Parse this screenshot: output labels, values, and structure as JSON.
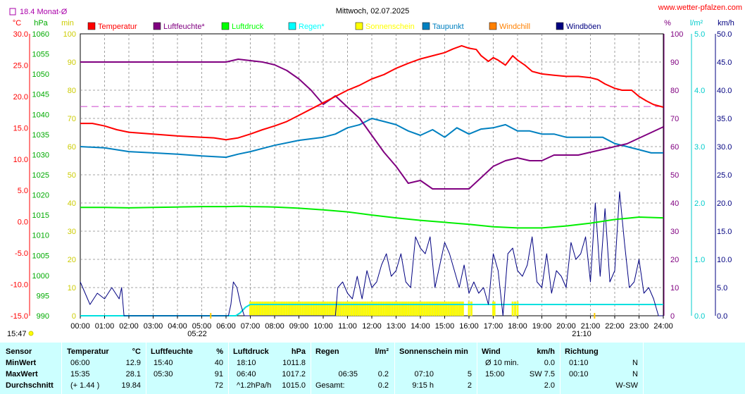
{
  "header": {
    "title": "Mittwoch, 02.07.2025",
    "source": "www.wetter-pfalzen.com",
    "monthly_avg": "18.4 Monat-Ø"
  },
  "chart_data": {
    "type": "line",
    "title": "Mittwoch, 02.07.2025",
    "x_ticks": [
      "00:00",
      "01:00",
      "02:00",
      "03:00",
      "04:00",
      "05:00",
      "06:00",
      "07:00",
      "08:00",
      "09:00",
      "10:00",
      "11:00",
      "12:00",
      "13:00",
      "14:00",
      "15:00",
      "16:00",
      "17:00",
      "18:00",
      "19:00",
      "20:00",
      "21:00",
      "22:00",
      "23:00",
      "24:00"
    ],
    "axes": {
      "temp_c": {
        "label": "°C",
        "range": [
          -15,
          30
        ],
        "ticks": [
          "30.0",
          "25.0",
          "20.0",
          "15.0",
          "10.0",
          "5.0",
          "0.0",
          "-5.0",
          "-10.0",
          "-15.0"
        ],
        "color": "#ff0000"
      },
      "pressure_hpa": {
        "label": "hPa",
        "range": [
          990,
          1060
        ],
        "ticks": [
          "1060",
          "1055",
          "1050",
          "1045",
          "1040",
          "1035",
          "1030",
          "1025",
          "1020",
          "1015",
          "1010",
          "1005",
          "1000",
          "995",
          "990"
        ],
        "color": "#00aa00"
      },
      "sun_min": {
        "label": "min",
        "range": [
          0,
          100
        ],
        "ticks": [
          "100",
          "90",
          "80",
          "70",
          "60",
          "50",
          "40",
          "30",
          "20",
          "10",
          "0"
        ],
        "color": "#cccc00"
      },
      "humidity_pct": {
        "label": "%",
        "range": [
          0,
          100
        ],
        "ticks": [
          "100",
          "90",
          "80",
          "70",
          "60",
          "50",
          "40",
          "30",
          "20",
          "10",
          "0"
        ],
        "color": "#800080"
      },
      "rain_lm2": {
        "label": "l/m²",
        "range": [
          0,
          5
        ],
        "ticks": [
          "5.0",
          "4.0",
          "3.0",
          "2.0",
          "1.0",
          "0.0"
        ],
        "color": "#00cccc"
      },
      "wind_kmh": {
        "label": "km/h",
        "range": [
          0,
          50
        ],
        "ticks": [
          "50.0",
          "45.0",
          "40.0",
          "35.0",
          "30.0",
          "25.0",
          "20.0",
          "15.0",
          "10.0",
          "5.0",
          "0.0"
        ],
        "color": "#000080"
      }
    },
    "legend": [
      {
        "name": "Temperatur",
        "color": "#ff0000"
      },
      {
        "name": "Luftfeuchte*",
        "color": "#800080"
      },
      {
        "name": "Luftdruck",
        "color": "#00ff00"
      },
      {
        "name": "Regen*",
        "color": "#00ffff"
      },
      {
        "name": "Sonnenschein",
        "color": "#ffff00"
      },
      {
        "name": "Taupunkt",
        "color": "#0080c0"
      },
      {
        "name": "Windchill",
        "color": "#ff8000"
      },
      {
        "name": "Windböen",
        "color": "#000080"
      }
    ],
    "monthly_avg_temp": 18.4,
    "series": [
      {
        "name": "Temperatur",
        "axis": "temp_c",
        "x": [
          0,
          0.5,
          1,
          1.5,
          2,
          3,
          4,
          5,
          5.5,
          6,
          6.5,
          7,
          7.5,
          8,
          8.5,
          9,
          9.5,
          10,
          10.5,
          11,
          11.5,
          12,
          12.5,
          13,
          13.5,
          14,
          14.5,
          15,
          15.35,
          15.7,
          16,
          16.3,
          16.5,
          16.8,
          17,
          17.2,
          17.5,
          17.8,
          18,
          18.3,
          18.6,
          19,
          19.5,
          20,
          20.5,
          21,
          21.3,
          21.6,
          22,
          22.3,
          22.7,
          23,
          23.3,
          23.6,
          24
        ],
        "values": [
          15.7,
          15.7,
          15.3,
          14.7,
          14.3,
          14.0,
          13.7,
          13.5,
          13.4,
          13.1,
          13.4,
          14.0,
          14.7,
          15.3,
          16.0,
          17.0,
          18.0,
          19.0,
          20.0,
          21.0,
          21.8,
          22.8,
          23.5,
          24.5,
          25.3,
          26.0,
          26.5,
          27.0,
          27.6,
          28.1,
          27.7,
          27.5,
          26.5,
          25.6,
          26.2,
          25.8,
          25.0,
          26.5,
          25.8,
          25.0,
          24.0,
          23.6,
          23.4,
          23.2,
          23.2,
          23.0,
          22.7,
          22.0,
          21.3,
          21.0,
          21.0,
          20.0,
          19.3,
          18.7,
          18.3
        ]
      },
      {
        "name": "Luftfeuchte*",
        "axis": "humidity_pct",
        "x": [
          0,
          1,
          2,
          3,
          4,
          5,
          6,
          6.5,
          7,
          7.5,
          8,
          8.5,
          9,
          9.5,
          10,
          10.5,
          11,
          11.5,
          12,
          12.5,
          13,
          13.5,
          14,
          14.5,
          15,
          15.5,
          16,
          16.5,
          17,
          17.5,
          18,
          18.5,
          19,
          19.5,
          20,
          20.5,
          21,
          21.5,
          22,
          22.5,
          23,
          23.5,
          24
        ],
        "values": [
          90,
          90,
          90,
          90,
          90,
          90,
          90,
          91,
          90.5,
          90,
          89,
          87,
          84,
          80,
          75,
          78,
          74,
          70,
          64,
          58,
          53,
          47,
          48,
          45,
          45,
          45,
          45,
          49,
          53,
          55,
          56,
          55,
          55,
          57,
          57,
          57,
          58,
          59,
          60,
          61,
          63,
          65,
          67
        ]
      },
      {
        "name": "Luftdruck",
        "axis": "pressure_hpa",
        "x": [
          0,
          1,
          2,
          3,
          4,
          5,
          6,
          6.67,
          7,
          8,
          9,
          10,
          11,
          12,
          13,
          14,
          15,
          16,
          17,
          18,
          19,
          20,
          21,
          22,
          23,
          24
        ],
        "values": [
          1016.9,
          1016.9,
          1016.8,
          1016.9,
          1017.0,
          1017.1,
          1017.1,
          1017.2,
          1017.1,
          1017.0,
          1016.7,
          1016.3,
          1015.8,
          1015.0,
          1014.3,
          1013.7,
          1013.2,
          1012.7,
          1012.1,
          1011.8,
          1011.8,
          1012.3,
          1013.0,
          1013.9,
          1014.5,
          1014.3
        ]
      },
      {
        "name": "Regen*",
        "axis": "rain_lm2",
        "x": [
          0,
          6.4,
          6.58,
          6.8,
          7.0,
          7.5,
          24
        ],
        "values": [
          0.0,
          0.0,
          0.05,
          0.15,
          0.2,
          0.2,
          0.2
        ]
      },
      {
        "name": "Taupunkt",
        "axis": "temp_c",
        "x": [
          0,
          1,
          2,
          3,
          4,
          5,
          6,
          6.5,
          7,
          8,
          9,
          10,
          10.5,
          11,
          11.5,
          12,
          12.5,
          13,
          13.5,
          14,
          14.5,
          15,
          15.5,
          16,
          16.5,
          17,
          17.5,
          18,
          18.5,
          19,
          19.5,
          20,
          20.5,
          21,
          21.5,
          22,
          22.5,
          23,
          23.5,
          24
        ],
        "values": [
          12.0,
          11.8,
          11.2,
          11.0,
          10.8,
          10.5,
          10.3,
          10.8,
          11.2,
          12.2,
          13.0,
          13.5,
          14.0,
          15.0,
          15.5,
          16.5,
          16.0,
          15.5,
          14.5,
          13.8,
          14.7,
          13.5,
          15.0,
          14.0,
          14.8,
          15.0,
          15.5,
          14.5,
          14.5,
          14.0,
          14.0,
          13.5,
          13.5,
          13.5,
          13.5,
          12.5,
          12.0,
          11.5,
          11.0,
          11.0
        ]
      },
      {
        "name": "Windböen",
        "axis": "wind_kmh",
        "x": [
          0,
          0.2,
          0.4,
          0.7,
          1.0,
          1.3,
          1.6,
          1.7,
          1.8,
          6.1,
          6.2,
          6.3,
          6.45,
          6.6,
          6.75,
          6.9,
          10.5,
          10.6,
          10.8,
          11.0,
          11.2,
          11.4,
          11.6,
          11.8,
          12.0,
          12.2,
          12.4,
          12.6,
          12.8,
          13.0,
          13.2,
          13.4,
          13.6,
          13.8,
          14.0,
          14.2,
          14.4,
          14.6,
          14.8,
          15.0,
          15.2,
          15.4,
          15.6,
          15.8,
          16.0,
          16.2,
          16.4,
          16.6,
          16.8,
          17.0,
          17.2,
          17.4,
          17.6,
          17.8,
          18.0,
          18.2,
          18.4,
          18.6,
          18.8,
          19.0,
          19.2,
          19.4,
          19.6,
          19.8,
          20.0,
          20.2,
          20.4,
          20.6,
          20.8,
          21.0,
          21.2,
          21.4,
          21.6,
          21.8,
          22.0,
          22.2,
          22.4,
          22.6,
          22.8,
          23.0,
          23.2,
          23.4,
          23.6,
          23.8,
          24.0
        ],
        "values": [
          6,
          4,
          2,
          4,
          3,
          5,
          3,
          5,
          0,
          0,
          2,
          6,
          5,
          2,
          0,
          0,
          0,
          5,
          6,
          4,
          3,
          7,
          3,
          8,
          5,
          6,
          9,
          11,
          7,
          8,
          11,
          6,
          5,
          14,
          12,
          11,
          14,
          5,
          9,
          13,
          11,
          8,
          5,
          9,
          4,
          6,
          4,
          5,
          2,
          11,
          8,
          0,
          11,
          12,
          8,
          7,
          9,
          14,
          6,
          5,
          11,
          4,
          8,
          7,
          5,
          13,
          10,
          11,
          14,
          6,
          20,
          7,
          19,
          6,
          8,
          22,
          13,
          5,
          6,
          10,
          4,
          5,
          3,
          0,
          0
        ]
      }
    ],
    "sunshine_bars": {
      "axis": "sun_min",
      "x": [
        7.0,
        15.75
      ],
      "value": 5,
      "extra_x": [
        16.0,
        16.1,
        17.0,
        17.05,
        17.8,
        17.9,
        18.0
      ]
    },
    "markers": {
      "current_time": "15:47",
      "sunrise": "05:22",
      "sunset": "21:10"
    }
  },
  "stats": {
    "headers": {
      "sensor": "Sensor",
      "temp": "Temperatur",
      "temp_unit": "°C",
      "hum": "Luftfeuchte",
      "hum_unit": "%",
      "press": "Luftdruck",
      "press_unit": "hPa",
      "rain": "Regen",
      "rain_unit": "l/m²",
      "sun": "Sonnenschein min",
      "wind": "Wind",
      "wind_unit": "km/h",
      "dir": "Richtung"
    },
    "rows": [
      {
        "label": "MinWert",
        "temp_time": "06:00",
        "temp_val": "12.9",
        "hum_time": "15:40",
        "hum_val": "40",
        "press_time": "18:10",
        "press_val": "1011.8",
        "rain_time": "",
        "rain_val": "",
        "sun_time": "",
        "sun_val": "",
        "wind_label": "Ø 10 min.",
        "wind_val": "0.0",
        "dir_time": "01:10",
        "dir_val": "N"
      },
      {
        "label": "MaxWert",
        "temp_time": "15:35",
        "temp_val": "28.1",
        "hum_time": "05:30",
        "hum_val": "91",
        "press_time": "06:40",
        "press_val": "1017.2",
        "rain_time": "06:35",
        "rain_val": "0.2",
        "sun_time": "07:10",
        "sun_val": "5",
        "wind_label": "15:00",
        "wind_val": "SW 7.5",
        "dir_time": "00:10",
        "dir_val": "N"
      },
      {
        "label": "Durchschnitt",
        "temp_time": "(+ 1.44 )",
        "temp_val": "19.84",
        "hum_time": "",
        "hum_val": "72",
        "press_time": "^1.2hPa/h",
        "press_val": "1015.0",
        "rain_time": "Gesamt:",
        "rain_val": "0.2",
        "sun_time": "9:15 h",
        "sun_val": "2",
        "wind_label": "",
        "wind_val": "2.0",
        "dir_time": "",
        "dir_val": "W-SW"
      }
    ]
  }
}
